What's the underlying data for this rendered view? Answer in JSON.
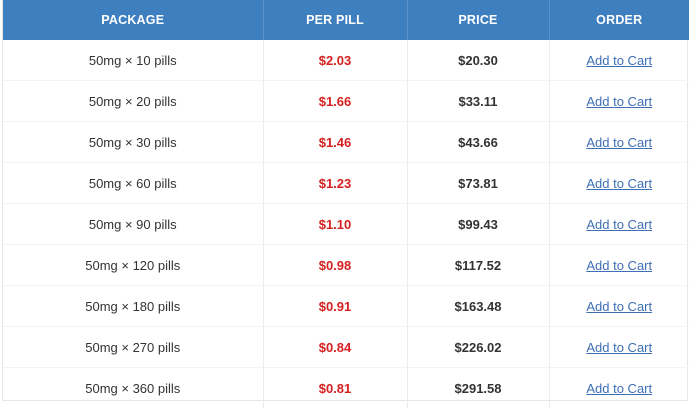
{
  "header": {
    "package": "PACKAGE",
    "per_pill": "PER PILL",
    "price": "PRICE",
    "order": "ORDER"
  },
  "rows": [
    {
      "package": "50mg × 10 pills",
      "per_pill": "$2.03",
      "price": "$20.30",
      "order": "Add to Cart"
    },
    {
      "package": "50mg × 20 pills",
      "per_pill": "$1.66",
      "price": "$33.11",
      "order": "Add to Cart"
    },
    {
      "package": "50mg × 30 pills",
      "per_pill": "$1.46",
      "price": "$43.66",
      "order": "Add to Cart"
    },
    {
      "package": "50mg × 60 pills",
      "per_pill": "$1.23",
      "price": "$73.81",
      "order": "Add to Cart"
    },
    {
      "package": "50mg × 90 pills",
      "per_pill": "$1.10",
      "price": "$99.43",
      "order": "Add to Cart"
    },
    {
      "package": "50mg × 120 pills",
      "per_pill": "$0.98",
      "price": "$117.52",
      "order": "Add to Cart"
    },
    {
      "package": "50mg × 180 pills",
      "per_pill": "$0.91",
      "price": "$163.48",
      "order": "Add to Cart"
    },
    {
      "package": "50mg × 270 pills",
      "per_pill": "$0.84",
      "price": "$226.02",
      "order": "Add to Cart"
    },
    {
      "package": "50mg × 360 pills",
      "per_pill": "$0.81",
      "price": "$291.58",
      "order": "Add to Cart"
    }
  ],
  "colors": {
    "header_bg": "#3e7fc0",
    "per_pill_text": "#d62020",
    "link": "#3e6fb4"
  }
}
